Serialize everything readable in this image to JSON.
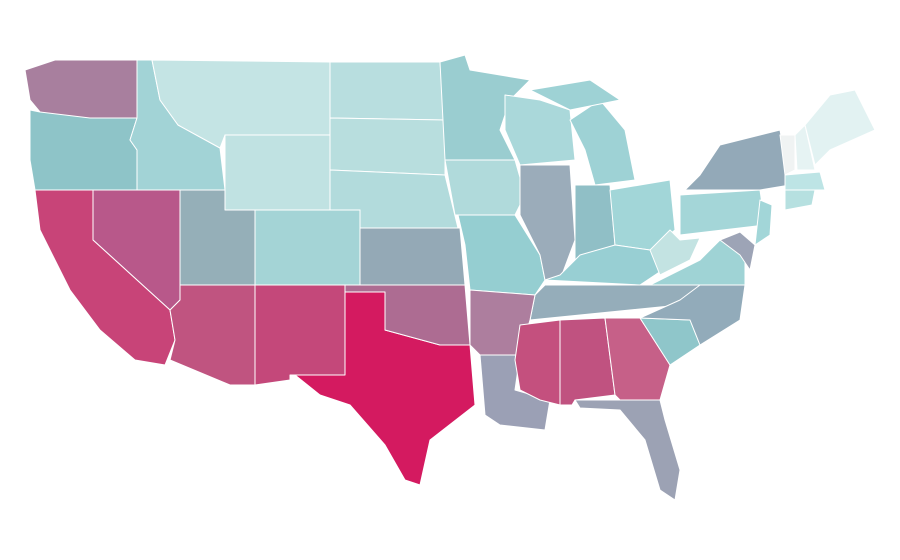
{
  "map": {
    "fills": [
      "#a87f9e",
      "#8ec4c8",
      "#a2d3d6",
      "#c4e4e4",
      "#c0e2e2",
      "#b8dedf",
      "#b8dede",
      "#b2dbdc",
      "#a4d4d6",
      "#95afb8",
      "#b8588a",
      "#c84478",
      "#c05480",
      "#c4487a",
      "#d41a60",
      "#ad6c92",
      "#94a9b6",
      "#9acdd0",
      "#b0dadb",
      "#95ced1",
      "#aad8da",
      "#9bacba",
      "#9ed2d5",
      "#9ed2d5",
      "#90bfc6",
      "#a2d6d8",
      "#98cfd3",
      "#95adba",
      "#ad7e9e",
      "#9ba0b5",
      "#c4507e",
      "#c05280",
      "#c66088",
      "#9ca2b4",
      "#8fc6ca",
      "#92abba",
      "#9fd3d5",
      "#c3e3e2",
      "#a4d6d8",
      "#93a9b8",
      "#a2d6d8",
      "#9da4b6",
      "#f0f3f3",
      "#e6f3f3",
      "#e2f2f2",
      "#bde4e5",
      "#b6e0e0"
    ]
  }
}
